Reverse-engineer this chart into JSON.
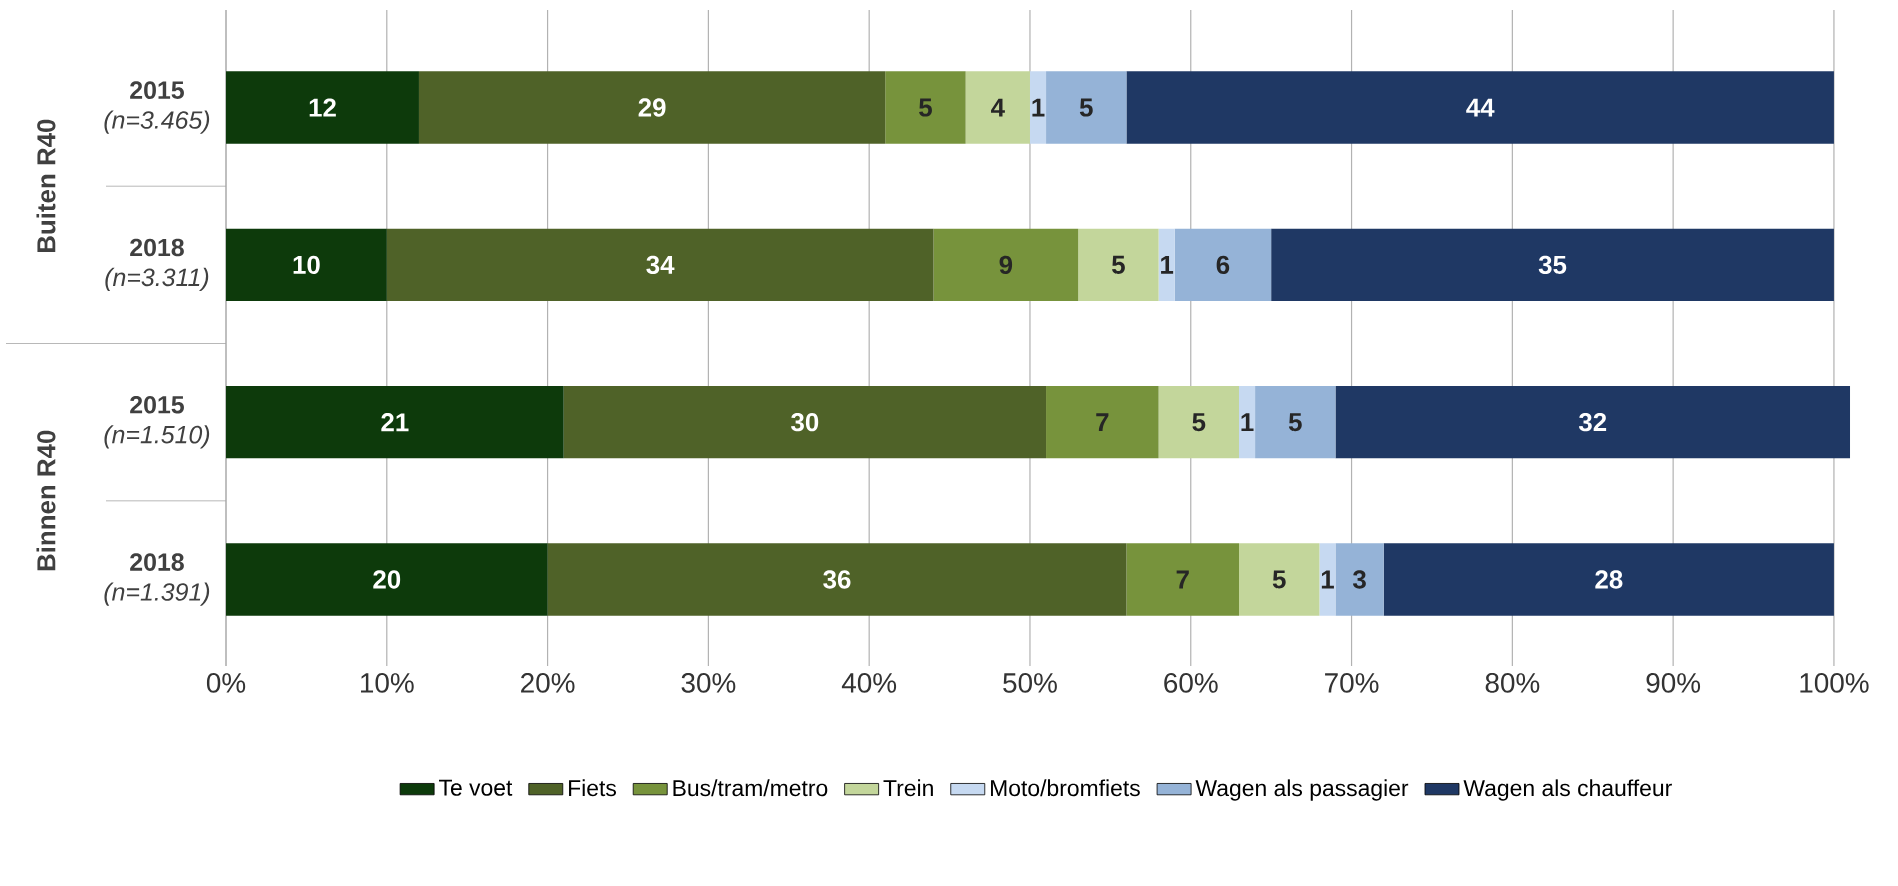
{
  "chart_data": {
    "type": "bar",
    "orientation": "horizontal",
    "stacked": true,
    "data_labels": true,
    "grid": "x",
    "legend": "bottom",
    "categories": [
      "**2015** *(n=3.465)*",
      "**2018** *(n=3.311)*",
      "**2015** *(n=1.510)*",
      "**2018** *(n=1.391)*"
    ],
    "annotations": [
      "Buiten R40",
      "Binnen R40"
    ],
    "xlim": [
      0,
      101
    ],
    "xticks": [
      {
        "value": 0,
        "label": "0%"
      },
      {
        "value": 10,
        "label": "10%"
      },
      {
        "value": 20,
        "label": "20%"
      },
      {
        "value": 30,
        "label": "30%"
      },
      {
        "value": 40,
        "label": "40%"
      },
      {
        "value": 50,
        "label": "50%"
      },
      {
        "value": 60,
        "label": "60%"
      },
      {
        "value": 70,
        "label": "70%"
      },
      {
        "value": 80,
        "label": "80%"
      },
      {
        "value": 90,
        "label": "90%"
      },
      {
        "value": 100,
        "label": "100%"
      }
    ],
    "series": [
      {
        "name": "Te voet",
        "color": "#0d3a0b",
        "values": [
          12,
          10,
          21,
          20
        ]
      },
      {
        "name": "Fiets",
        "color": "#4f6228",
        "values": [
          29,
          34,
          30,
          36
        ]
      },
      {
        "name": "Bus/tram/metro",
        "color": "#77933c",
        "values": [
          5,
          9,
          7,
          7
        ]
      },
      {
        "name": "Trein",
        "color": "#c3d69b",
        "values": [
          4,
          5,
          5,
          5
        ]
      },
      {
        "name": "Moto/bromfiets",
        "color": "#c6d9f1",
        "values": [
          1,
          1,
          1,
          1
        ]
      },
      {
        "name": "Wagen als passagier",
        "color": "#95b3d7",
        "values": [
          5,
          6,
          5,
          3
        ]
      },
      {
        "name": "Wagen als chauffeur",
        "color": "#1f3864",
        "values": [
          44,
          35,
          32,
          28
        ]
      }
    ]
  }
}
